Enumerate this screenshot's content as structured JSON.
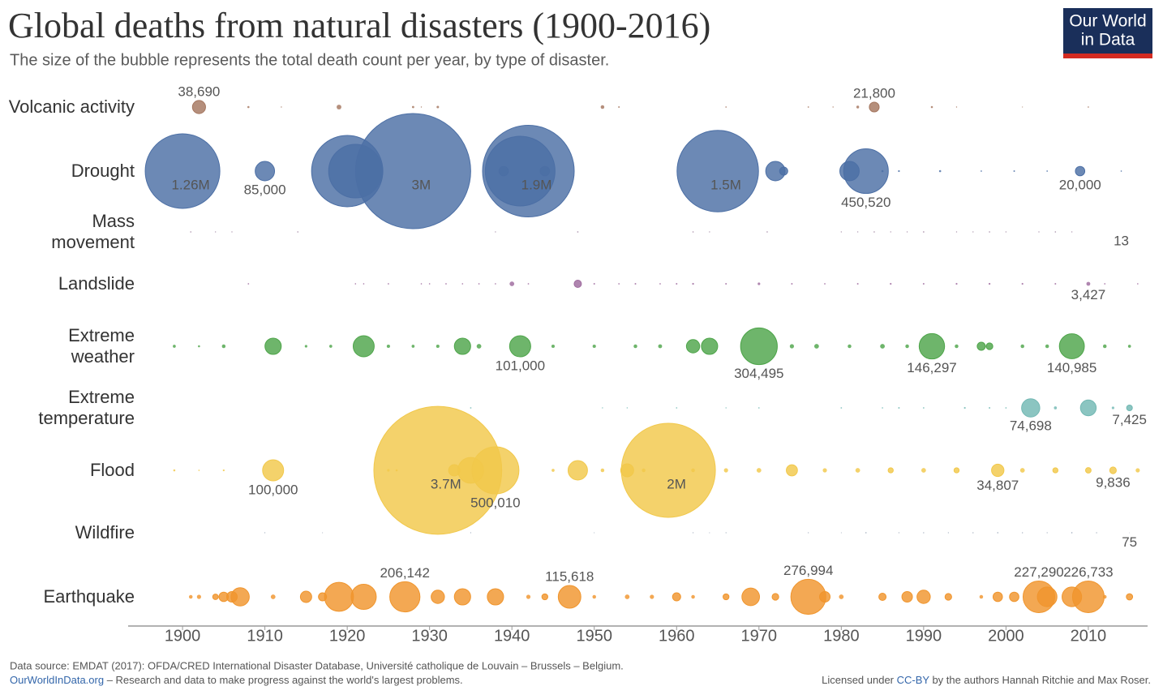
{
  "logo": [
    "Our World",
    "in Data"
  ],
  "footer": {
    "source": "Data source: EMDAT (2017): OFDA/CRED International Disaster Database, Université catholique de Louvain – Brussels – Belgium.",
    "site": "OurWorldInData.org",
    "tagline": " – Research and data to make progress against the world's largest problems.",
    "license_pre": "Licensed under ",
    "license_link": "CC-BY",
    "license_post": " by the authors Hannah Ritchie and Max Roser."
  },
  "chart_data": {
    "type": "bubble",
    "title": "Global deaths from natural disasters (1900-2016)",
    "subtitle": "The size of the bubble represents the total death count per year, by type of disaster.",
    "xlim": [
      1893,
      2017
    ],
    "xticks": [
      1900,
      1910,
      1920,
      1930,
      1940,
      1950,
      1960,
      1970,
      1980,
      1990,
      2000,
      2010
    ],
    "series": [
      {
        "name": "Volcanic activity",
        "color": "#a5765f",
        "x": [
          1902,
          1908,
          1912,
          1919,
          1928,
          1929,
          1931,
          1951,
          1953,
          1966,
          1976,
          1979,
          1982,
          1984,
          1991,
          1994,
          2002,
          2010
        ],
        "values": [
          38690,
          1000,
          300,
          5110,
          1200,
          300,
          1400,
          3000,
          600,
          400,
          500,
          300,
          1700,
          21800,
          1000,
          300,
          200,
          400
        ],
        "value_labels": [
          "38,690",
          null,
          null,
          null,
          null,
          null,
          null,
          null,
          null,
          null,
          null,
          null,
          null,
          "21,800",
          null,
          null,
          null,
          null
        ]
      },
      {
        "name": "Drought",
        "color": "#4c6fa5",
        "x": [
          1900,
          1910,
          1920,
          1921,
          1928,
          1939,
          1941,
          1942,
          1944,
          1965,
          1972,
          1973,
          1981,
          1983,
          1985,
          1987,
          1992,
          1997,
          2001,
          2005,
          2009,
          2014
        ],
        "values": [
          1260000,
          85000,
          1150000,
          650000,
          3000000,
          20000,
          1100000,
          1900000,
          20000,
          1500000,
          85000,
          15000,
          85000,
          450520,
          1000,
          800,
          1000,
          500,
          600,
          500,
          20000,
          400
        ],
        "value_labels": [
          "1.26M",
          "85,000",
          null,
          null,
          "3M",
          null,
          null,
          "1.9M",
          null,
          "1.5M",
          null,
          null,
          null,
          "450,520",
          null,
          null,
          null,
          null,
          null,
          null,
          "20,000",
          null
        ]
      },
      {
        "name": "Mass movement",
        "color": "#a48aa5",
        "x": [
          1901,
          1904,
          1906,
          1914,
          1938,
          1948,
          1962,
          1964,
          1971,
          1980,
          1982,
          1984,
          1986,
          1988,
          1990,
          1994,
          1996,
          1998,
          2000,
          2004,
          2006,
          2008,
          2014
        ],
        "values": [
          400,
          300,
          300,
          400,
          300,
          500,
          400,
          300,
          400,
          300,
          300,
          400,
          300,
          300,
          500,
          300,
          300,
          400,
          300,
          300,
          400,
          300,
          13
        ],
        "value_labels": [
          null,
          null,
          null,
          null,
          null,
          null,
          null,
          null,
          null,
          null,
          null,
          null,
          null,
          null,
          null,
          null,
          null,
          null,
          null,
          null,
          null,
          null,
          "13"
        ]
      },
      {
        "name": "Landslide",
        "color": "#9e6a9e",
        "x": [
          1908,
          1921,
          1922,
          1925,
          1929,
          1930,
          1932,
          1934,
          1936,
          1938,
          1940,
          1942,
          1948,
          1950,
          1953,
          1955,
          1958,
          1960,
          1962,
          1966,
          1970,
          1974,
          1978,
          1982,
          1986,
          1990,
          1994,
          1998,
          2002,
          2006,
          2010,
          2012,
          2016
        ],
        "values": [
          500,
          400,
          400,
          500,
          400,
          400,
          500,
          400,
          500,
          400,
          5000,
          500,
          12000,
          600,
          500,
          600,
          500,
          600,
          800,
          600,
          1500,
          600,
          500,
          600,
          700,
          600,
          700,
          800,
          700,
          600,
          3427,
          500,
          400
        ],
        "value_labels": [
          null,
          null,
          null,
          null,
          null,
          null,
          null,
          null,
          null,
          null,
          null,
          null,
          null,
          null,
          null,
          null,
          null,
          null,
          null,
          null,
          null,
          null,
          null,
          null,
          null,
          null,
          null,
          null,
          null,
          null,
          "3,427",
          null,
          null
        ]
      },
      {
        "name": "Extreme weather",
        "color": "#4ea54a",
        "x": [
          1899,
          1902,
          1905,
          1911,
          1915,
          1918,
          1922,
          1925,
          1928,
          1931,
          1934,
          1936,
          1941,
          1945,
          1950,
          1955,
          1958,
          1962,
          1964,
          1970,
          1974,
          1977,
          1981,
          1985,
          1988,
          1991,
          1994,
          1997,
          1998,
          2002,
          2005,
          2008,
          2012,
          2015
        ],
        "values": [
          2000,
          1000,
          3000,
          60000,
          1500,
          2000,
          100000,
          2500,
          2000,
          2500,
          60000,
          5000,
          101000,
          2500,
          2500,
          3000,
          3500,
          40000,
          60000,
          304495,
          4000,
          5000,
          3000,
          5000,
          3000,
          146297,
          3000,
          15000,
          10000,
          3000,
          3000,
          140985,
          3000,
          2000
        ],
        "value_labels": [
          null,
          null,
          null,
          null,
          null,
          null,
          null,
          null,
          null,
          null,
          null,
          null,
          "101,000",
          null,
          null,
          null,
          null,
          null,
          null,
          "304,495",
          null,
          null,
          null,
          null,
          null,
          "146,297",
          null,
          null,
          null,
          null,
          null,
          "140,985",
          null,
          null
        ]
      },
      {
        "name": "Extreme temperature",
        "color": "#72b8b3",
        "x": [
          1935,
          1951,
          1954,
          1960,
          1966,
          1970,
          1980,
          1985,
          1987,
          1990,
          1995,
          1998,
          2000,
          2003,
          2006,
          2010,
          2013,
          2015
        ],
        "values": [
          500,
          300,
          300,
          400,
          300,
          400,
          500,
          400,
          600,
          500,
          700,
          600,
          500,
          74698,
          2000,
          56000,
          1500,
          7425
        ],
        "value_labels": [
          null,
          null,
          null,
          null,
          null,
          null,
          null,
          null,
          null,
          null,
          null,
          null,
          null,
          "74,698",
          null,
          null,
          null,
          "7,425"
        ]
      },
      {
        "name": "Flood",
        "color": "#f1c84b",
        "x": [
          1899,
          1902,
          1905,
          1911,
          1925,
          1926,
          1931,
          1933,
          1935,
          1938,
          1945,
          1948,
          1951,
          1954,
          1956,
          1959,
          1962,
          1966,
          1970,
          1974,
          1978,
          1982,
          1986,
          1990,
          1994,
          1999,
          2002,
          2006,
          2010,
          2013,
          2016
        ],
        "values": [
          1000,
          500,
          800,
          100000,
          1500,
          1000,
          3700000,
          29000,
          150000,
          500010,
          2000,
          85000,
          3000,
          38000,
          3000,
          2000000,
          3000,
          4000,
          5000,
          28000,
          4000,
          5000,
          6000,
          5000,
          6000,
          34807,
          5000,
          6000,
          7000,
          9836,
          4000
        ],
        "value_labels": [
          null,
          null,
          null,
          "100,000",
          null,
          null,
          "3.7M",
          null,
          null,
          "500,010",
          null,
          null,
          null,
          null,
          null,
          "2M",
          null,
          null,
          null,
          null,
          null,
          null,
          null,
          null,
          null,
          "34,807",
          null,
          null,
          null,
          "9,836",
          null
        ]
      },
      {
        "name": "Wildfire",
        "color": "#7f8fa6",
        "x": [
          1910,
          1917,
          1935,
          1950,
          1962,
          1964,
          1966,
          1976,
          1980,
          1983,
          1987,
          1990,
          1993,
          1996,
          1999,
          2002,
          2005,
          2008,
          2011,
          2015
        ],
        "values": [
          200,
          150,
          200,
          150,
          200,
          150,
          200,
          200,
          150,
          300,
          200,
          250,
          200,
          250,
          300,
          250,
          200,
          300,
          250,
          75
        ],
        "value_labels": [
          null,
          null,
          null,
          null,
          null,
          null,
          null,
          null,
          null,
          null,
          null,
          null,
          null,
          null,
          null,
          null,
          null,
          null,
          null,
          "75"
        ]
      },
      {
        "name": "Earthquake",
        "color": "#f0952d",
        "x": [
          1901,
          1902,
          1904,
          1905,
          1906,
          1907,
          1911,
          1915,
          1917,
          1919,
          1922,
          1927,
          1931,
          1934,
          1938,
          1942,
          1944,
          1947,
          1950,
          1954,
          1957,
          1960,
          1962,
          1966,
          1969,
          1972,
          1976,
          1978,
          1980,
          1985,
          1988,
          1990,
          1993,
          1997,
          1999,
          2001,
          2004,
          2005,
          2008,
          2010,
          2012,
          2015
        ],
        "values": [
          3000,
          4000,
          7000,
          20000,
          25000,
          75000,
          5000,
          29000,
          15000,
          190000,
          143000,
          206142,
          40000,
          60000,
          60000,
          4000,
          8000,
          115618,
          3000,
          5000,
          4000,
          15000,
          3000,
          8000,
          70000,
          10000,
          276994,
          25000,
          5000,
          12000,
          25000,
          40000,
          10000,
          3000,
          20000,
          20000,
          227290,
          87000,
          87000,
          226733,
          3000,
          9000
        ],
        "value_labels": [
          null,
          null,
          null,
          null,
          null,
          null,
          null,
          null,
          null,
          null,
          null,
          "206,142",
          null,
          null,
          null,
          null,
          null,
          "115,618",
          null,
          null,
          null,
          null,
          null,
          null,
          null,
          null,
          "276,994",
          null,
          null,
          null,
          null,
          null,
          null,
          null,
          null,
          null,
          "227,290",
          null,
          null,
          "226,733",
          null,
          null
        ]
      }
    ]
  }
}
